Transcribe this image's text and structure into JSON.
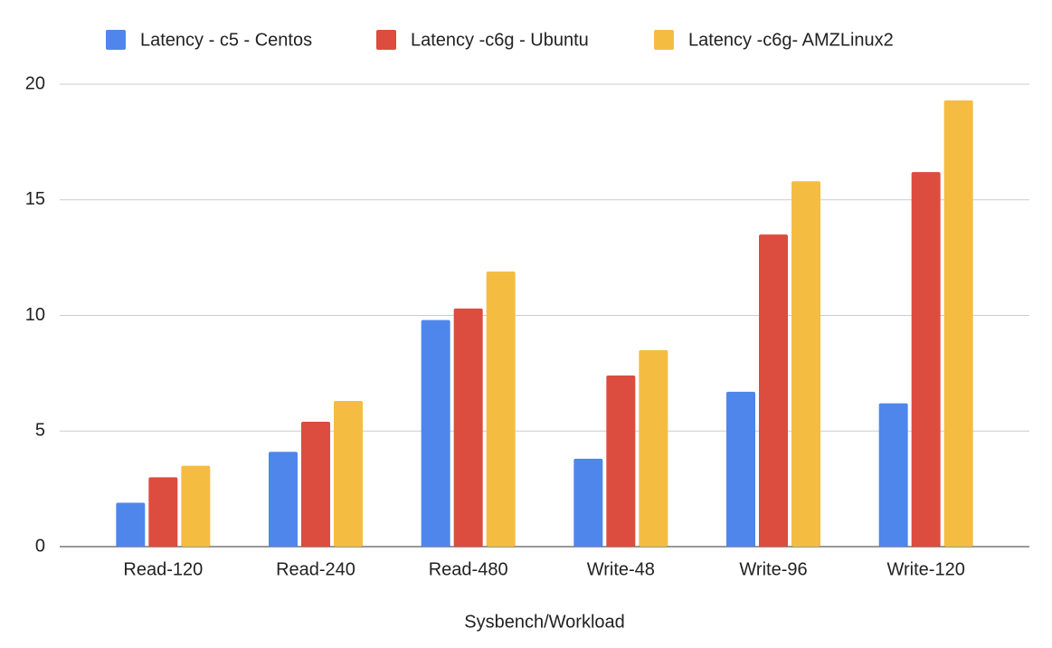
{
  "chart_data": {
    "type": "bar",
    "x_label": "Sysbench/Workload",
    "categories": [
      "Read-120",
      "Read-240",
      "Read-480",
      "Write-48",
      "Write-96",
      "Write-120"
    ],
    "series": [
      {
        "name": "Latency - c5 - Centos",
        "color": "#4e86ec",
        "values": [
          1.9,
          4.1,
          9.8,
          3.8,
          6.7,
          6.2
        ]
      },
      {
        "name": "Latency -c6g - Ubuntu",
        "color": "#dc4c3f",
        "values": [
          3.0,
          5.4,
          10.3,
          7.4,
          13.5,
          16.2
        ]
      },
      {
        "name": "Latency -c6g- AMZLinux2",
        "color": "#f4bd42",
        "values": [
          3.5,
          6.3,
          11.9,
          8.5,
          15.8,
          19.3
        ]
      }
    ],
    "ylim": [
      0,
      20
    ],
    "yticks": [
      0,
      5,
      10,
      15,
      20
    ],
    "grid": true,
    "legend": "top"
  }
}
